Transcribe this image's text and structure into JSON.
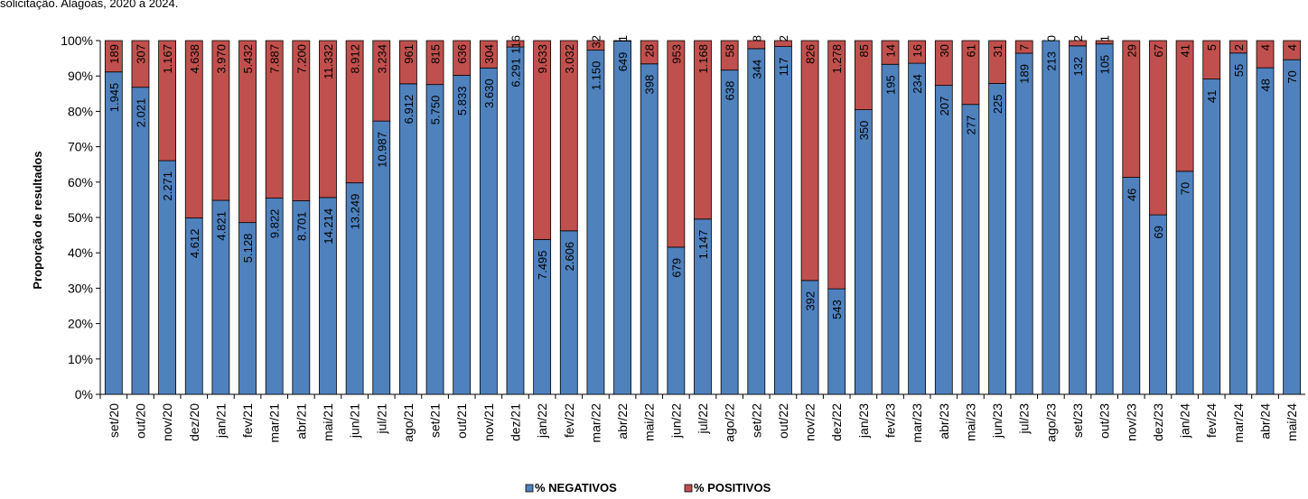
{
  "caption": "solicitação. Alagoas, 2020 a 2024.",
  "chart_data": {
    "type": "bar",
    "stacked": true,
    "normalized": true,
    "ylabel": "Proporção de resultados",
    "ylim": [
      0,
      100
    ],
    "yticks": [
      "0%",
      "10%",
      "20%",
      "30%",
      "40%",
      "50%",
      "60%",
      "70%",
      "80%",
      "90%",
      "100%"
    ],
    "legend_position": "bottom",
    "categories": [
      "set/20",
      "out/20",
      "nov/20",
      "dez/20",
      "jan/21",
      "fev/21",
      "mar/21",
      "abr/21",
      "mai/21",
      "jun/21",
      "jul/21",
      "ago/21",
      "set/21",
      "out/21",
      "nov/21",
      "dez/21",
      "jan/22",
      "fev/22",
      "mar/22",
      "abr/22",
      "mai/22",
      "jun/22",
      "jul/22",
      "ago/22",
      "set/22",
      "out/22",
      "nov/22",
      "dez/22",
      "jan/23",
      "fev/23",
      "mar/23",
      "abr/23",
      "mai/23",
      "jun/23",
      "jul/23",
      "ago/23",
      "set/23",
      "out/23",
      "nov/23",
      "dez/23",
      "jan/24",
      "fev/24",
      "mar/24",
      "abr/24",
      "mai/24"
    ],
    "series": [
      {
        "name": "% NEGATIVOS",
        "color": "#4f81bd",
        "values": [
          1945,
          2021,
          2271,
          4612,
          4821,
          5128,
          9822,
          8701,
          14214,
          13249,
          10987,
          6912,
          5750,
          5833,
          3630,
          6291,
          7495,
          2606,
          1150,
          649,
          398,
          679,
          1147,
          638,
          344,
          117,
          392,
          543,
          350,
          195,
          234,
          207,
          277,
          225,
          189,
          213,
          132,
          105,
          46,
          69,
          70,
          41,
          55,
          48,
          70
        ],
        "labels": [
          "1.945",
          "2.021",
          "2.271",
          "4.612",
          "4.821",
          "5.128",
          "9.822",
          "8.701",
          "14.214",
          "13.249",
          "10.987",
          "6.912",
          "5.750",
          "5.833",
          "3.630",
          "6.291",
          "7.495",
          "2.606",
          "1.150",
          "649",
          "398",
          "679",
          "1.147",
          "638",
          "344",
          "117",
          "392",
          "543",
          "350",
          "195",
          "234",
          "207",
          "277",
          "225",
          "189",
          "213",
          "132",
          "105",
          "46",
          "69",
          "70",
          "41",
          "55",
          "48",
          "70"
        ]
      },
      {
        "name": "% POSITIVOS",
        "color": "#c0504d",
        "values": [
          189,
          307,
          1167,
          4638,
          3970,
          5432,
          7887,
          7200,
          11332,
          8912,
          3234,
          961,
          815,
          636,
          304,
          116,
          9633,
          3032,
          32,
          1,
          28,
          953,
          1168,
          58,
          8,
          2,
          826,
          1278,
          85,
          14,
          16,
          30,
          61,
          31,
          7,
          0,
          2,
          1,
          29,
          67,
          41,
          5,
          2,
          4,
          4
        ],
        "labels": [
          "189",
          "307",
          "1.167",
          "4.638",
          "3.970",
          "5.432",
          "7.887",
          "7.200",
          "11.332",
          "8.912",
          "3.234",
          "961",
          "815",
          "636",
          "304",
          "116",
          "9.633",
          "3.032",
          "32",
          "1",
          "28",
          "953",
          "1.168",
          "58",
          "8",
          "2",
          "826",
          "1.278",
          "85",
          "14",
          "16",
          "30",
          "61",
          "31",
          "7",
          "0",
          "2",
          "1",
          "29",
          "67",
          "41",
          "5",
          "2",
          "4",
          "4"
        ]
      }
    ]
  }
}
